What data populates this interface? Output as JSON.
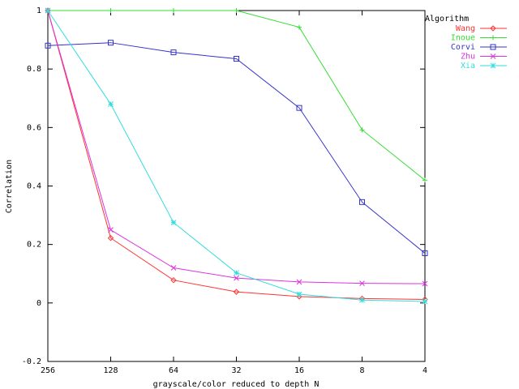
{
  "chart_data": {
    "type": "line",
    "xlabel": "grayscale/color reduced to depth N",
    "ylabel": "Correlation",
    "x_categories": [
      "256",
      "128",
      "64",
      "32",
      "16",
      "8",
      "4"
    ],
    "ylim": [
      -0.2,
      1.0
    ],
    "y_ticks": [
      "-0.2",
      "0",
      "0.2",
      "0.4",
      "0.6",
      "0.8",
      "1"
    ],
    "y_tick_values": [
      -0.2,
      0,
      0.2,
      0.4,
      0.6,
      0.8,
      1.0
    ],
    "grid": false,
    "legend_title": "Algorithm",
    "legend_position": "top-right",
    "series": [
      {
        "name": "Wang",
        "color": "#ff3333",
        "marker": "diamond",
        "values": [
          1.0,
          0.222,
          0.078,
          0.038,
          0.022,
          0.015,
          0.012
        ]
      },
      {
        "name": "Inoue",
        "color": "#33dd33",
        "marker": "plus",
        "values": [
          1.0,
          1.0,
          1.0,
          1.0,
          0.943,
          0.592,
          0.42
        ]
      },
      {
        "name": "Corvi",
        "color": "#3333cc",
        "marker": "square",
        "values": [
          0.88,
          0.89,
          0.857,
          0.835,
          0.667,
          0.345,
          0.17
        ]
      },
      {
        "name": "Zhu",
        "color": "#dd33dd",
        "marker": "x",
        "values": [
          1.0,
          0.25,
          0.12,
          0.085,
          0.072,
          0.067,
          0.066
        ]
      },
      {
        "name": "Xia",
        "color": "#33dddd",
        "marker": "star",
        "values": [
          1.0,
          0.68,
          0.275,
          0.103,
          0.03,
          0.01,
          0.005
        ]
      }
    ]
  }
}
